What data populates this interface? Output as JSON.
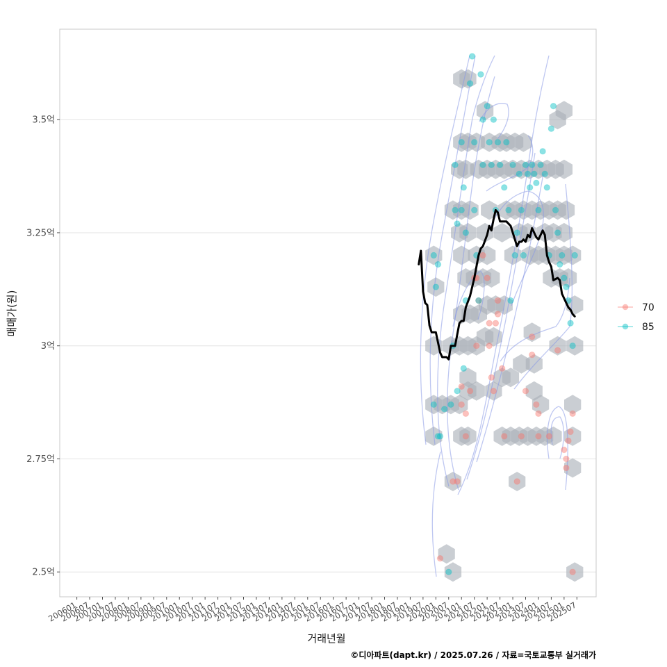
{
  "chart_data": {
    "type": "scatter",
    "title": "",
    "xlabel": "거래년월",
    "ylabel": "매매가(원)",
    "caption": "©디아파트(dapt.kr) / 2025.07.26 / 자료=국토교통부 실거래가",
    "x_ticks": [
      "200601",
      "200607",
      "200701",
      "200707",
      "200801",
      "200807",
      "200901",
      "200907",
      "201001",
      "201007",
      "201101",
      "201107",
      "201201",
      "201207",
      "201301",
      "201307",
      "201401",
      "201407",
      "201501",
      "201507",
      "201601",
      "201607",
      "201701",
      "201707",
      "201801",
      "201807",
      "201901",
      "201907",
      "202001",
      "202007",
      "202101",
      "202107",
      "202201",
      "202207",
      "202301",
      "202307",
      "202401",
      "202407",
      "202501",
      "202507"
    ],
    "x_range": [
      "2005-05",
      "2026-04"
    ],
    "y_ticks": [
      {
        "value": 2.5,
        "label": "2.5억"
      },
      {
        "value": 2.75,
        "label": "2.75억"
      },
      {
        "value": 3.0,
        "label": "3억"
      },
      {
        "value": 3.25,
        "label": "3.25억"
      },
      {
        "value": 3.5,
        "label": "3.5억"
      }
    ],
    "ylim": [
      2.445,
      3.7
    ],
    "grid": true,
    "legend_position": "right",
    "colors": {
      "70": "#F8766D",
      "85": "#00BFC4",
      "trend": "#000000",
      "hex": "#a9b0b8",
      "contour": "#8899e6"
    },
    "series": [
      {
        "name": "70",
        "points": [
          [
            "2020-03",
            2.53
          ],
          [
            "2020-09",
            2.7
          ],
          [
            "2020-11",
            2.7
          ],
          [
            "2021-01",
            2.87
          ],
          [
            "2021-01",
            2.91
          ],
          [
            "2021-03",
            2.85
          ],
          [
            "2021-03",
            2.8
          ],
          [
            "2021-05",
            2.9
          ],
          [
            "2021-07",
            3.15
          ],
          [
            "2021-08",
            3.15
          ],
          [
            "2021-08",
            3.0
          ],
          [
            "2021-09",
            3.1
          ],
          [
            "2021-11",
            3.2
          ],
          [
            "2022-01",
            3.15
          ],
          [
            "2022-02",
            3.05
          ],
          [
            "2022-02",
            3.0
          ],
          [
            "2022-03",
            2.93
          ],
          [
            "2022-04",
            2.9
          ],
          [
            "2022-05",
            3.05
          ],
          [
            "2022-06",
            3.07
          ],
          [
            "2022-06",
            3.1
          ],
          [
            "2022-08",
            2.95
          ],
          [
            "2022-09",
            2.8
          ],
          [
            "2023-03",
            2.7
          ],
          [
            "2023-05",
            2.8
          ],
          [
            "2023-07",
            2.9
          ],
          [
            "2023-10",
            2.98
          ],
          [
            "2023-10",
            3.02
          ],
          [
            "2023-12",
            2.87
          ],
          [
            "2024-01",
            2.85
          ],
          [
            "2024-01",
            2.8
          ],
          [
            "2024-06",
            2.8
          ],
          [
            "2024-10",
            2.99
          ],
          [
            "2025-01",
            2.77
          ],
          [
            "2025-02",
            2.75
          ],
          [
            "2025-02",
            2.73
          ],
          [
            "2025-03",
            2.79
          ],
          [
            "2025-04",
            2.81
          ],
          [
            "2025-05",
            2.85
          ],
          [
            "2025-05",
            2.5
          ]
        ]
      },
      {
        "name": "85",
        "points": [
          [
            "2019-12",
            3.2
          ],
          [
            "2019-12",
            2.87
          ],
          [
            "2020-01",
            3.13
          ],
          [
            "2020-02",
            3.18
          ],
          [
            "2020-02",
            2.8
          ],
          [
            "2020-03",
            2.8
          ],
          [
            "2020-05",
            2.86
          ],
          [
            "2020-07",
            2.5
          ],
          [
            "2020-08",
            2.87
          ],
          [
            "2020-09",
            3.0
          ],
          [
            "2020-10",
            3.3
          ],
          [
            "2020-10",
            3.4
          ],
          [
            "2020-11",
            3.27
          ],
          [
            "2020-11",
            2.9
          ],
          [
            "2021-01",
            3.45
          ],
          [
            "2021-01",
            3.3
          ],
          [
            "2021-02",
            3.35
          ],
          [
            "2021-02",
            2.95
          ],
          [
            "2021-03",
            3.25
          ],
          [
            "2021-03",
            3.1
          ],
          [
            "2021-05",
            3.58
          ],
          [
            "2021-06",
            3.64
          ],
          [
            "2021-07",
            3.3
          ],
          [
            "2021-07",
            3.45
          ],
          [
            "2021-08",
            3.2
          ],
          [
            "2021-09",
            3.1
          ],
          [
            "2021-10",
            3.6
          ],
          [
            "2021-11",
            3.5
          ],
          [
            "2021-11",
            3.4
          ],
          [
            "2022-01",
            3.53
          ],
          [
            "2022-02",
            3.45
          ],
          [
            "2022-03",
            3.4
          ],
          [
            "2022-04",
            3.5
          ],
          [
            "2022-05",
            3.3
          ],
          [
            "2022-06",
            3.45
          ],
          [
            "2022-07",
            3.4
          ],
          [
            "2022-09",
            3.35
          ],
          [
            "2022-10",
            3.45
          ],
          [
            "2022-11",
            3.3
          ],
          [
            "2022-12",
            3.1
          ],
          [
            "2023-01",
            3.4
          ],
          [
            "2023-02",
            3.2
          ],
          [
            "2023-03",
            3.25
          ],
          [
            "2023-04",
            3.38
          ],
          [
            "2023-05",
            3.3
          ],
          [
            "2023-06",
            3.2
          ],
          [
            "2023-07",
            3.4
          ],
          [
            "2023-08",
            3.38
          ],
          [
            "2023-09",
            3.35
          ],
          [
            "2023-10",
            3.4
          ],
          [
            "2023-11",
            3.38
          ],
          [
            "2023-12",
            3.36
          ],
          [
            "2024-01",
            3.3
          ],
          [
            "2024-02",
            3.4
          ],
          [
            "2024-03",
            3.43
          ],
          [
            "2024-04",
            3.38
          ],
          [
            "2024-05",
            3.35
          ],
          [
            "2024-06",
            3.2
          ],
          [
            "2024-07",
            3.48
          ],
          [
            "2024-08",
            3.53
          ],
          [
            "2024-09",
            3.3
          ],
          [
            "2024-10",
            3.25
          ],
          [
            "2024-11",
            3.18
          ],
          [
            "2024-12",
            3.2
          ],
          [
            "2025-01",
            3.15
          ],
          [
            "2025-02",
            3.13
          ],
          [
            "2025-03",
            3.1
          ],
          [
            "2025-04",
            3.05
          ],
          [
            "2025-05",
            3.0
          ],
          [
            "2025-06",
            3.2
          ]
        ]
      }
    ],
    "trend": [
      [
        "2019-05",
        3.18
      ],
      [
        "2019-06",
        3.21
      ],
      [
        "2019-07",
        3.12
      ],
      [
        "2019-08",
        3.095
      ],
      [
        "2019-09",
        3.09
      ],
      [
        "2019-10",
        3.045
      ],
      [
        "2019-11",
        3.03
      ],
      [
        "2020-01",
        3.03
      ],
      [
        "2020-03",
        2.985
      ],
      [
        "2020-04",
        2.975
      ],
      [
        "2020-06",
        2.975
      ],
      [
        "2020-07",
        2.97
      ],
      [
        "2020-08",
        3.0
      ],
      [
        "2020-10",
        3.0
      ],
      [
        "2020-12",
        3.05
      ],
      [
        "2021-01",
        3.055
      ],
      [
        "2021-02",
        3.055
      ],
      [
        "2021-03",
        3.085
      ],
      [
        "2021-05",
        3.11
      ],
      [
        "2021-07",
        3.15
      ],
      [
        "2021-09",
        3.2
      ],
      [
        "2021-10",
        3.215
      ],
      [
        "2021-11",
        3.22
      ],
      [
        "2022-01",
        3.245
      ],
      [
        "2022-02",
        3.265
      ],
      [
        "2022-03",
        3.255
      ],
      [
        "2022-04",
        3.28
      ],
      [
        "2022-05",
        3.3
      ],
      [
        "2022-06",
        3.295
      ],
      [
        "2022-07",
        3.275
      ],
      [
        "2022-08",
        3.275
      ],
      [
        "2022-10",
        3.275
      ],
      [
        "2022-12",
        3.265
      ],
      [
        "2023-02",
        3.235
      ],
      [
        "2023-03",
        3.22
      ],
      [
        "2023-04",
        3.23
      ],
      [
        "2023-05",
        3.23
      ],
      [
        "2023-06",
        3.235
      ],
      [
        "2023-07",
        3.23
      ],
      [
        "2023-08",
        3.245
      ],
      [
        "2023-09",
        3.24
      ],
      [
        "2023-10",
        3.26
      ],
      [
        "2023-11",
        3.25
      ],
      [
        "2023-12",
        3.24
      ],
      [
        "2024-01",
        3.235
      ],
      [
        "2024-03",
        3.255
      ],
      [
        "2024-04",
        3.245
      ],
      [
        "2024-05",
        3.2
      ],
      [
        "2024-06",
        3.185
      ],
      [
        "2024-07",
        3.175
      ],
      [
        "2024-08",
        3.145
      ],
      [
        "2024-10",
        3.15
      ],
      [
        "2024-11",
        3.145
      ],
      [
        "2024-12",
        3.115
      ],
      [
        "2025-02",
        3.095
      ],
      [
        "2025-03",
        3.085
      ],
      [
        "2025-04",
        3.08
      ],
      [
        "2025-05",
        3.07
      ],
      [
        "2025-06",
        3.065
      ]
    ],
    "hexbins": [
      [
        "2021-01",
        3.59
      ],
      [
        "2021-04",
        3.59
      ],
      [
        "2021-12",
        3.52
      ],
      [
        "2022-07",
        3.45
      ],
      [
        "2021-01",
        3.45
      ],
      [
        "2021-04",
        3.45
      ],
      [
        "2021-08",
        3.45
      ],
      [
        "2022-02",
        3.45
      ],
      [
        "2022-10",
        3.45
      ],
      [
        "2023-02",
        3.45
      ],
      [
        "2023-06",
        3.45
      ],
      [
        "2024-10",
        3.5
      ],
      [
        "2025-01",
        3.52
      ],
      [
        "2020-12",
        3.39
      ],
      [
        "2021-03",
        3.39
      ],
      [
        "2021-09",
        3.39
      ],
      [
        "2022-01",
        3.39
      ],
      [
        "2022-05",
        3.39
      ],
      [
        "2022-09",
        3.39
      ],
      [
        "2023-01",
        3.39
      ],
      [
        "2023-05",
        3.39
      ],
      [
        "2023-09",
        3.39
      ],
      [
        "2024-01",
        3.39
      ],
      [
        "2024-05",
        3.39
      ],
      [
        "2024-09",
        3.39
      ],
      [
        "2025-01",
        3.39
      ],
      [
        "2020-09",
        3.3
      ],
      [
        "2021-01",
        3.3
      ],
      [
        "2021-05",
        3.3
      ],
      [
        "2022-02",
        3.3
      ],
      [
        "2022-10",
        3.3
      ],
      [
        "2023-02",
        3.3
      ],
      [
        "2023-06",
        3.3
      ],
      [
        "2023-10",
        3.3
      ],
      [
        "2024-02",
        3.3
      ],
      [
        "2024-06",
        3.3
      ],
      [
        "2024-10",
        3.3
      ],
      [
        "2025-02",
        3.3
      ],
      [
        "2020-12",
        3.25
      ],
      [
        "2021-04",
        3.25
      ],
      [
        "2021-12",
        3.25
      ],
      [
        "2022-08",
        3.25
      ],
      [
        "2023-04",
        3.25
      ],
      [
        "2023-08",
        3.25
      ],
      [
        "2024-04",
        3.25
      ],
      [
        "2024-08",
        3.25
      ],
      [
        "2025-01",
        3.25
      ],
      [
        "2019-12",
        3.2
      ],
      [
        "2021-01",
        3.2
      ],
      [
        "2021-08",
        3.2
      ],
      [
        "2022-01",
        3.2
      ],
      [
        "2023-01",
        3.2
      ],
      [
        "2023-09",
        3.2
      ],
      [
        "2024-01",
        3.2
      ],
      [
        "2024-05",
        3.2
      ],
      [
        "2024-09",
        3.2
      ],
      [
        "2025-01",
        3.2
      ],
      [
        "2025-05",
        3.2
      ],
      [
        "2020-01",
        3.13
      ],
      [
        "2021-03",
        3.15
      ],
      [
        "2021-07",
        3.15
      ],
      [
        "2021-11",
        3.15
      ],
      [
        "2022-03",
        3.15
      ],
      [
        "2024-07",
        3.15
      ],
      [
        "2024-11",
        3.15
      ],
      [
        "2025-03",
        3.15
      ],
      [
        "2021-01",
        3.07
      ],
      [
        "2021-05",
        3.07
      ],
      [
        "2021-09",
        3.07
      ],
      [
        "2022-01",
        3.09
      ],
      [
        "2022-05",
        3.09
      ],
      [
        "2022-09",
        3.09
      ],
      [
        "2025-06",
        3.09
      ],
      [
        "2019-12",
        3.0
      ],
      [
        "2020-08",
        3.0
      ],
      [
        "2020-12",
        3.0
      ],
      [
        "2021-04",
        3.0
      ],
      [
        "2021-08",
        3.0
      ],
      [
        "2021-12",
        3.02
      ],
      [
        "2022-04",
        3.02
      ],
      [
        "2023-10",
        3.03
      ],
      [
        "2024-10",
        3.0
      ],
      [
        "2025-06",
        3.0
      ],
      [
        "2023-05",
        2.96
      ],
      [
        "2023-11",
        2.96
      ],
      [
        "2022-08",
        2.93
      ],
      [
        "2021-04",
        2.93
      ],
      [
        "2022-12",
        2.93
      ],
      [
        "2019-12",
        2.87
      ],
      [
        "2020-04",
        2.87
      ],
      [
        "2020-08",
        2.87
      ],
      [
        "2020-12",
        2.87
      ],
      [
        "2021-04",
        2.9
      ],
      [
        "2021-08",
        2.9
      ],
      [
        "2022-04",
        2.9
      ],
      [
        "2023-11",
        2.9
      ],
      [
        "2024-02",
        2.87
      ],
      [
        "2025-05",
        2.87
      ],
      [
        "2019-12",
        2.8
      ],
      [
        "2021-01",
        2.8
      ],
      [
        "2021-04",
        2.8
      ],
      [
        "2022-08",
        2.8
      ],
      [
        "2022-12",
        2.8
      ],
      [
        "2023-04",
        2.8
      ],
      [
        "2023-08",
        2.8
      ],
      [
        "2023-12",
        2.8
      ],
      [
        "2024-04",
        2.8
      ],
      [
        "2024-08",
        2.8
      ],
      [
        "2025-05",
        2.8
      ],
      [
        "2025-05",
        2.73
      ],
      [
        "2020-09",
        2.7
      ],
      [
        "2023-03",
        2.7
      ],
      [
        "2020-06",
        2.54
      ],
      [
        "2020-09",
        2.5
      ],
      [
        "2025-06",
        2.5
      ]
    ]
  },
  "legend": {
    "items": [
      {
        "label": "70"
      },
      {
        "label": "85"
      }
    ]
  }
}
